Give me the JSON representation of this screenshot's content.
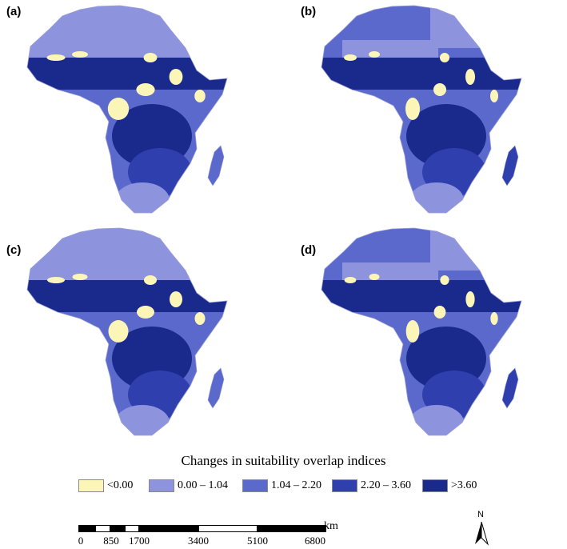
{
  "panels": [
    {
      "label": "(a)",
      "north_scheme": "uniform",
      "central_light": 0.8
    },
    {
      "label": "(b)",
      "north_scheme": "mixed",
      "central_light": 0.5
    },
    {
      "label": "(c)",
      "north_scheme": "uniform",
      "central_light": 0.75
    },
    {
      "label": "(d)",
      "north_scheme": "mixed",
      "central_light": 0.45
    }
  ],
  "legend": {
    "title": "Changes in suitability overlap indices",
    "classes": [
      {
        "label": "<0.00",
        "color": "#fbf6b7"
      },
      {
        "label": "0.00 – 1.04",
        "color": "#8e93de"
      },
      {
        "label": "1.04 – 2.20",
        "color": "#5b69cc"
      },
      {
        "label": "2.20 – 3.60",
        "color": "#2f3fae"
      },
      {
        "label": ">3.60",
        "color": "#1a2a8c"
      }
    ]
  },
  "scale_bar": {
    "unit": "km",
    "ticks": [
      "0",
      "850",
      "1700",
      "3400",
      "5100",
      "6800"
    ]
  },
  "north_arrow": {
    "label": "N"
  }
}
